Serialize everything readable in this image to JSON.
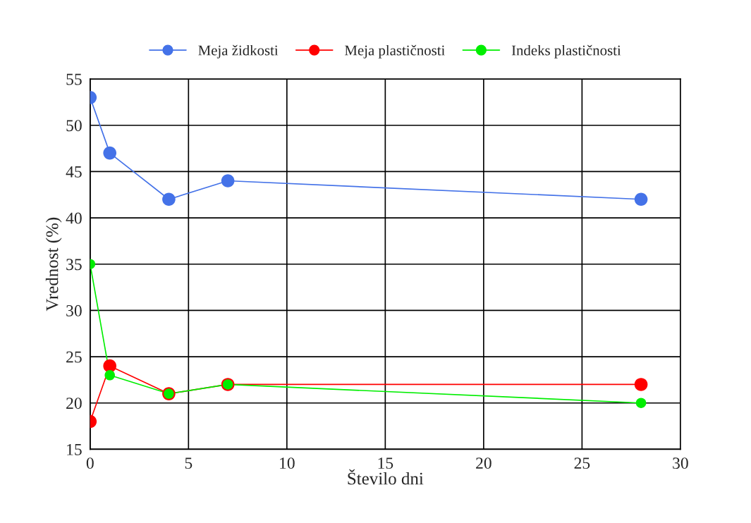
{
  "chart_data": {
    "type": "line",
    "xlabel": "Število dni",
    "ylabel": "Vrednost (%)",
    "x": [
      0,
      1,
      4,
      7,
      28
    ],
    "series": [
      {
        "name": "Meja židkosti",
        "color": "#4472e8",
        "values": [
          53,
          47,
          42,
          44,
          42
        ]
      },
      {
        "name": "Meja plastičnosti",
        "color": "#ff0000",
        "values": [
          18,
          24,
          21,
          22,
          22
        ]
      },
      {
        "name": "Indeks plastičnosti",
        "color": "#00ee00",
        "values": [
          35,
          23,
          21,
          22,
          20
        ]
      }
    ],
    "xlim": [
      0,
      30
    ],
    "xticks": [
      0,
      5,
      10,
      15,
      20,
      25,
      30
    ],
    "ylim": [
      15,
      55
    ],
    "yticks": [
      15,
      20,
      25,
      30,
      35,
      40,
      45,
      50,
      55
    ],
    "grid": true,
    "legend": "top",
    "marker": "circle",
    "line_style": "solid"
  }
}
